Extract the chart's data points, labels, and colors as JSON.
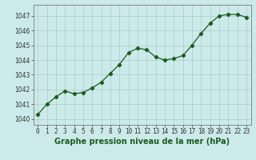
{
  "x": [
    0,
    1,
    2,
    3,
    4,
    5,
    6,
    7,
    8,
    9,
    10,
    11,
    12,
    13,
    14,
    15,
    16,
    17,
    18,
    19,
    20,
    21,
    22,
    23
  ],
  "y": [
    1040.3,
    1041.0,
    1041.5,
    1041.9,
    1041.7,
    1041.8,
    1042.1,
    1042.5,
    1043.1,
    1043.7,
    1044.5,
    1044.8,
    1044.7,
    1044.2,
    1044.0,
    1044.1,
    1044.3,
    1045.0,
    1045.8,
    1046.5,
    1047.0,
    1047.1,
    1047.1,
    1046.9
  ],
  "line_color": "#1a5c1a",
  "marker": "D",
  "marker_size": 2.2,
  "bg_color": "#cceaea",
  "grid_color": "#aacccc",
  "xlabel": "Graphe pression niveau de la mer (hPa)",
  "xlabel_fontsize": 7.0,
  "ylabel_ticks": [
    1040,
    1041,
    1042,
    1043,
    1044,
    1045,
    1046,
    1047
  ],
  "ylim": [
    1039.6,
    1047.75
  ],
  "xlim": [
    -0.5,
    23.5
  ],
  "xticks": [
    0,
    1,
    2,
    3,
    4,
    5,
    6,
    7,
    8,
    9,
    10,
    11,
    12,
    13,
    14,
    15,
    16,
    17,
    18,
    19,
    20,
    21,
    22,
    23
  ],
  "tick_fontsize": 5.5,
  "title_color": "#1a5c1a",
  "spine_color": "#888888"
}
